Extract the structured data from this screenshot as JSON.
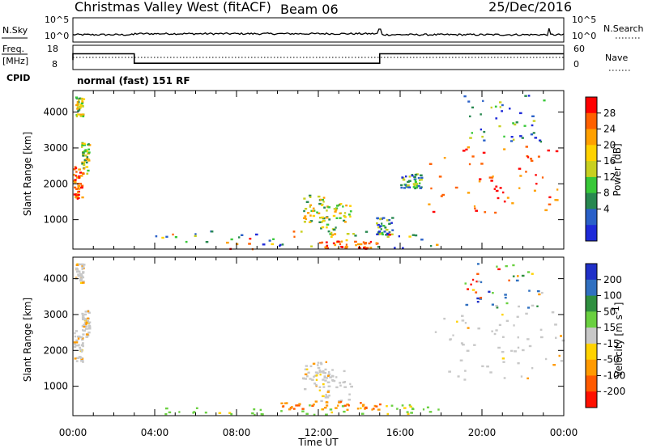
{
  "header": {
    "site": "Christmas Valley West (fitACF)",
    "beam": "Beam 06",
    "date": "25/Dec/2016"
  },
  "noise_panel": {
    "left_label": "N.Sky",
    "right_label": "N.Search",
    "left_ticks": [
      "10^5",
      "10^0"
    ],
    "right_ticks": [
      "10^5",
      "10^0"
    ]
  },
  "freq_panel": {
    "left_label_1": "Freq.",
    "left_label_2": "[MHz]",
    "right_label": "Nave",
    "left_ticks": [
      "18",
      "8"
    ],
    "right_ticks": [
      "60",
      "0"
    ],
    "cpid_label": "CPID",
    "cpid_value": "normal (fast) 151 RF"
  },
  "chart_data": [
    {
      "type": "heatmap",
      "quantity": "Power",
      "ylabel": "Slant Range [km]",
      "colorbar_label": "Power [dB]",
      "colorbar_ticks": [
        "28",
        "24",
        "20",
        "16",
        "12",
        "8",
        "4"
      ],
      "colorbar_colors": [
        "#ff0000",
        "#ff6000",
        "#ffa000",
        "#ffd200",
        "#c8d020",
        "#38c838",
        "#288850",
        "#2a60c8",
        "#1e2ad8"
      ],
      "yticks": [
        1000,
        2000,
        3000,
        4000
      ],
      "ylim": [
        180,
        4600
      ],
      "xlim_hours": [
        0,
        24
      ],
      "regions": [
        {
          "t": [
            0.0,
            0.45
          ],
          "r": [
            1600,
            2500
          ],
          "level": "strong"
        },
        {
          "t": [
            0.4,
            0.75
          ],
          "r": [
            2300,
            3200
          ],
          "level": "medium"
        },
        {
          "t": [
            0.1,
            0.5
          ],
          "r": [
            3900,
            4450
          ],
          "level": "medium"
        },
        {
          "t": [
            11.2,
            12.5
          ],
          "r": [
            900,
            1700
          ],
          "level": "medium"
        },
        {
          "t": [
            12.0,
            13.6
          ],
          "r": [
            600,
            1500
          ],
          "level": "medium"
        },
        {
          "t": [
            14.8,
            15.6
          ],
          "r": [
            600,
            1100
          ],
          "level": "weak"
        },
        {
          "t": [
            4.0,
            18.0
          ],
          "r": [
            200,
            700
          ],
          "level": "mixed"
        },
        {
          "t": [
            12.0,
            14.9
          ],
          "r": [
            200,
            420
          ],
          "level": "strong"
        },
        {
          "t": [
            17.3,
            24.0
          ],
          "r": [
            1200,
            3100
          ],
          "level": "strong"
        },
        {
          "t": [
            19.0,
            23.0
          ],
          "r": [
            3200,
            4500
          ],
          "level": "weak"
        },
        {
          "t": [
            16.0,
            17.0
          ],
          "r": [
            1900,
            2300
          ],
          "level": "weak"
        }
      ]
    },
    {
      "type": "heatmap",
      "quantity": "Velocity",
      "ylabel": "Slant Range [km]",
      "colorbar_label": "Velocity [m s^-1]",
      "colorbar_ticks": [
        "200",
        "100",
        "50",
        "15",
        "-15",
        "-50",
        "-100",
        "-200"
      ],
      "colorbar_colors": [
        "#2030c8",
        "#3070c0",
        "#2f8f3f",
        "#6ad040",
        "#c8c8c8",
        "#ffd200",
        "#ff9a00",
        "#ff5a00",
        "#ff1000"
      ],
      "yticks": [
        1000,
        2000,
        3000,
        4000
      ],
      "ylim": [
        180,
        4600
      ],
      "xlim_hours": [
        0,
        24
      ],
      "regions": [
        {
          "t": [
            0.0,
            0.45
          ],
          "r": [
            1700,
            2600
          ],
          "level": "ground"
        },
        {
          "t": [
            0.4,
            0.75
          ],
          "r": [
            2400,
            3200
          ],
          "level": "ground"
        },
        {
          "t": [
            0.1,
            0.5
          ],
          "r": [
            3900,
            4450
          ],
          "level": "ground"
        },
        {
          "t": [
            11.2,
            12.5
          ],
          "r": [
            900,
            1700
          ],
          "level": "ground"
        },
        {
          "t": [
            12.0,
            13.6
          ],
          "r": [
            600,
            1500
          ],
          "level": "ground"
        },
        {
          "t": [
            4.0,
            18.0
          ],
          "r": [
            200,
            500
          ],
          "level": "green"
        },
        {
          "t": [
            10.0,
            15.0
          ],
          "r": [
            350,
            600
          ],
          "level": "orange"
        },
        {
          "t": [
            17.3,
            24.0
          ],
          "r": [
            1200,
            3100
          ],
          "level": "ground"
        },
        {
          "t": [
            19.0,
            23.0
          ],
          "r": [
            3200,
            4500
          ],
          "level": "weak"
        }
      ]
    }
  ],
  "xaxis": {
    "ticks": [
      "00:00",
      "04:00",
      "08:00",
      "12:00",
      "16:00",
      "20:00",
      "00:00"
    ],
    "label": "Time UT"
  }
}
